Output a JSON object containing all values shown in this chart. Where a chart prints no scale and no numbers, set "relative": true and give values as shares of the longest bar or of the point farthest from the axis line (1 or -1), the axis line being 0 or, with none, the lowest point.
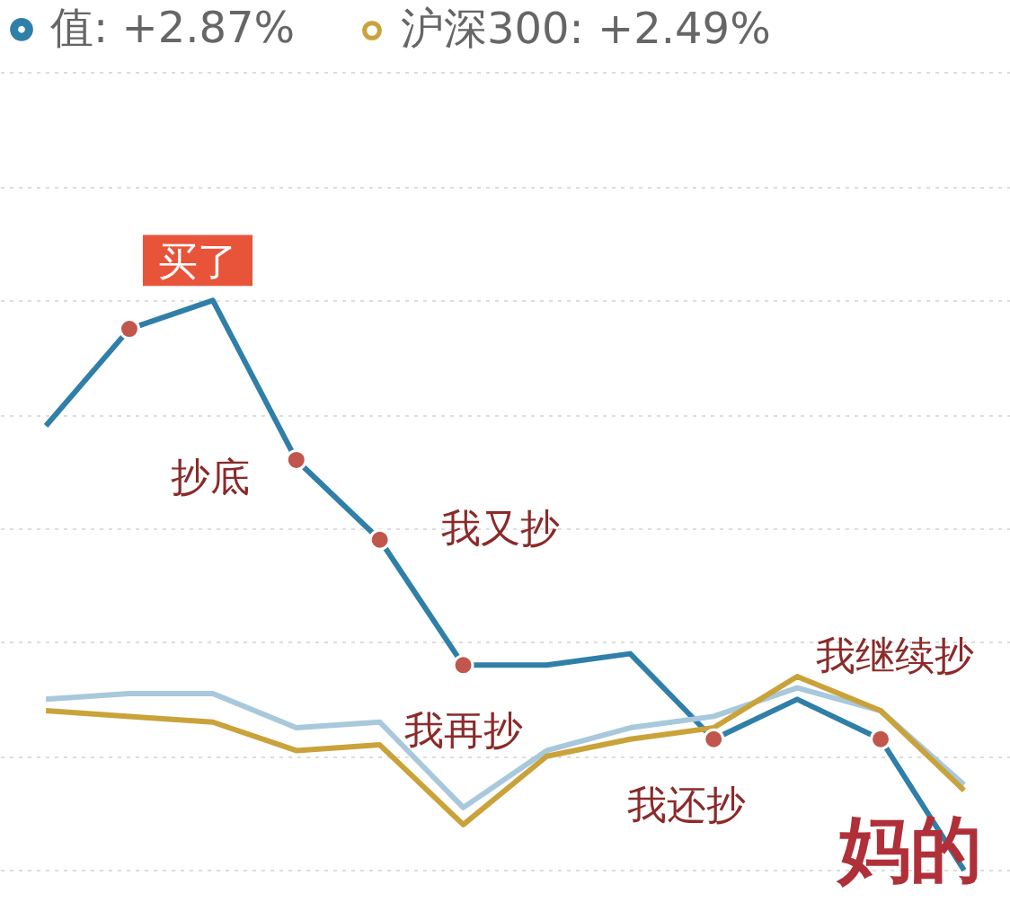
{
  "chart_data": {
    "type": "line",
    "relative": true,
    "legend": "top",
    "grid": "y",
    "tick_labels": false,
    "categories": [
      null,
      null,
      null,
      null,
      null,
      null,
      null,
      null,
      null,
      null,
      null,
      null
    ],
    "series": [
      {
        "name": "值: +2.87%",
        "color": "#2f7fa8",
        "values": [
          0.78,
          0.95,
          1,
          0.72,
          0.58,
          0.36,
          0.36,
          0.38,
          0.23,
          0.3,
          0.23,
          0
        ]
      },
      {
        "color": "#a8c8dc",
        "values": [
          0.3,
          0.31,
          0.31,
          0.25,
          0.26,
          0.11,
          0.21,
          0.25,
          0.27,
          0.32,
          0.28,
          0.15
        ]
      },
      {
        "name": "沪深300: +2.49%",
        "color": "#c9a23a",
        "values": [
          0.28,
          0.27,
          0.26,
          0.21,
          0.22,
          0.08,
          0.2,
          0.23,
          0.25,
          0.34,
          0.28,
          0.14
        ]
      }
    ],
    "annotations": [
      "买了",
      "抄底",
      "我又抄",
      "我再抄",
      "我还抄",
      "我继续抄",
      "妈的"
    ]
  }
}
